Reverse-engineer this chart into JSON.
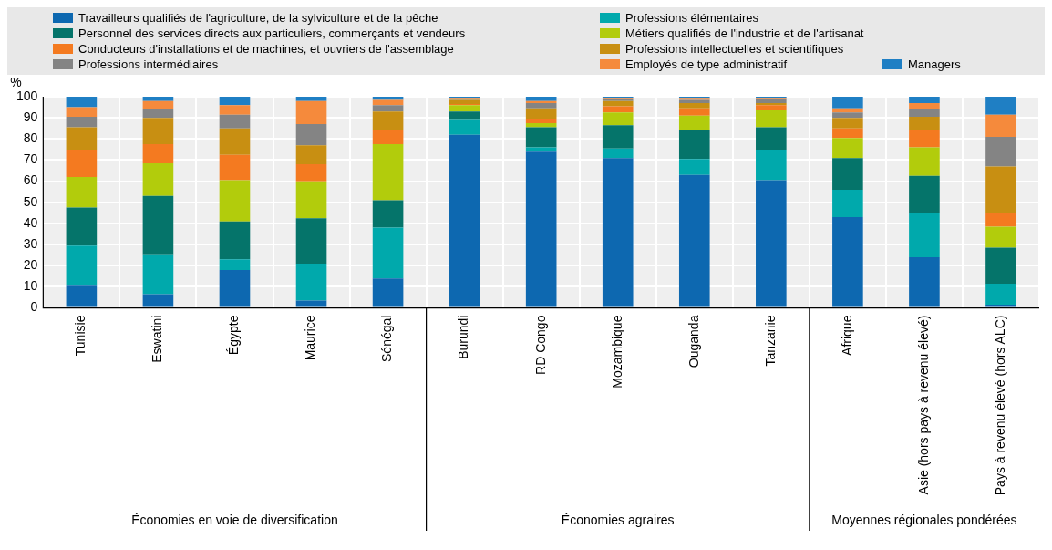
{
  "chart_data": {
    "type": "bar",
    "stacked": true,
    "ylabel": "%",
    "categories": [
      "Tunisie",
      "Eswatini",
      "Égypte",
      "Maurice",
      "Sénégal",
      "Burundi",
      "RD Congo",
      "Mozambique",
      "Ouganda",
      "Tanzanie",
      "Afrique",
      "Asie (hors pays à revenu élevé)",
      "Pays à revenu élevé (hors ALC)"
    ],
    "series": [
      {
        "name": "Travailleurs qualifiés de l'agriculture, de la sylviculture et de la pêche",
        "color": "#0d68b0",
        "values": [
          10.5,
          6.5,
          18,
          3.5,
          14,
          82,
          74,
          71,
          63,
          60.5,
          43,
          24,
          1.5
        ]
      },
      {
        "name": "Professions élémentaires",
        "color": "#00a9ac",
        "values": [
          19,
          18.5,
          5,
          17.5,
          24,
          7,
          2,
          4.5,
          7.5,
          14,
          13,
          21,
          10
        ]
      },
      {
        "name": "Personnel des services directs aux particuliers, commerçants et vendeurs",
        "color": "#05746a",
        "values": [
          18,
          28,
          18,
          21.5,
          13,
          4,
          9.5,
          11,
          14,
          11,
          15,
          17.5,
          17
        ]
      },
      {
        "name": "Métiers qualifiés de l'industrie et de l'artisanat",
        "color": "#b2cc0c",
        "values": [
          14.5,
          15.5,
          19.5,
          17.5,
          26.5,
          3,
          2,
          6,
          6.5,
          8,
          9.5,
          13.5,
          10
        ]
      },
      {
        "name": "Conducteurs d'installations et de machines, et ouvriers de l'assemblage",
        "color": "#f47a20",
        "values": [
          13,
          9,
          12,
          8,
          7,
          0.5,
          2,
          3,
          3.5,
          2.5,
          4.5,
          8.5,
          6.5
        ]
      },
      {
        "name": "Professions intellectuelles et scientifiques",
        "color": "#c88f12",
        "values": [
          10.5,
          12.5,
          12.5,
          9,
          8.5,
          2,
          5,
          2.5,
          2.5,
          1,
          5,
          6,
          22
        ]
      },
      {
        "name": "Professions intermédiaires",
        "color": "#848484",
        "values": [
          5,
          4,
          6.5,
          10,
          3,
          0.5,
          2.5,
          1,
          1.5,
          2,
          2.5,
          3.5,
          14
        ]
      },
      {
        "name": "Employés de type administratif",
        "color": "#f58a3c",
        "values": [
          4.5,
          4,
          4.5,
          11,
          2.5,
          0.5,
          1,
          0.5,
          1,
          0.5,
          2,
          3,
          10.5
        ]
      },
      {
        "name": "Managers",
        "color": "#1f7fc4",
        "values": [
          5,
          2,
          4,
          2,
          1.5,
          0.5,
          2,
          0.5,
          0.5,
          0.5,
          5.5,
          3,
          8.5
        ]
      }
    ],
    "ylim": [
      0,
      100
    ],
    "yticks": [
      0,
      10,
      20,
      30,
      40,
      50,
      60,
      70,
      80,
      90,
      100
    ],
    "grid": true,
    "legend": "top",
    "annotations": [
      "Économies en voie de diversification",
      "Économies agraires",
      "Moyennes régionales pondérées"
    ]
  }
}
